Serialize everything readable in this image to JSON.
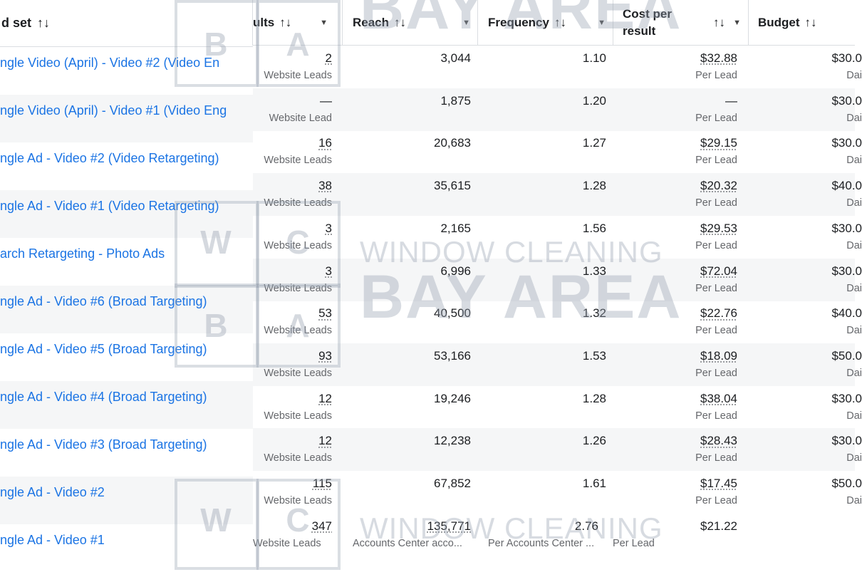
{
  "header": {
    "ad_set_label": "d set",
    "results_label": "ults",
    "reach_label": "Reach",
    "frequency_label": "Frequency",
    "cost_label_line1": "Cost per",
    "cost_label_line2": "result",
    "budget_label": "Budget",
    "sort_glyph": "↑↓",
    "caret_glyph": "▼"
  },
  "rows": [
    {
      "name": "ngle Video (April) - Video #2 (Video En",
      "results": "2",
      "results_sub": "Website Leads",
      "reach": "3,044",
      "frequency": "1.10",
      "cost": "$32.88",
      "cost_sub": "Per Lead",
      "budget": "$30.0",
      "budget_sub": "Dai"
    },
    {
      "name": "ngle Video (April) - Video #1 (Video Eng",
      "results": "—",
      "results_sub": "Website Lead",
      "reach": "1,875",
      "frequency": "1.20",
      "cost": "—",
      "cost_sub": "Per Lead",
      "budget": "$30.0",
      "budget_sub": "Dai"
    },
    {
      "name": "ngle Ad - Video #2 (Video Retargeting)",
      "results": "16",
      "results_sub": "Website Leads",
      "reach": "20,683",
      "frequency": "1.27",
      "cost": "$29.15",
      "cost_sub": "Per Lead",
      "budget": "$30.0",
      "budget_sub": "Dai"
    },
    {
      "name": "ngle Ad - Video #1 (Video Retargeting)",
      "results": "38",
      "results_sub": "Website Leads",
      "reach": "35,615",
      "frequency": "1.28",
      "cost": "$20.32",
      "cost_sub": "Per Lead",
      "budget": "$40.0",
      "budget_sub": "Dai"
    },
    {
      "name": "arch Retargeting - Photo Ads",
      "results": "3",
      "results_sub": "Website Leads",
      "reach": "2,165",
      "frequency": "1.56",
      "cost": "$29.53",
      "cost_sub": "Per Lead",
      "budget": "$30.0",
      "budget_sub": "Dai"
    },
    {
      "name": "ngle Ad - Video #6 (Broad Targeting)",
      "results": "3",
      "results_sub": "Website Leads",
      "reach": "6,996",
      "frequency": "1.33",
      "cost": "$72.04",
      "cost_sub": "Per Lead",
      "budget": "$30.0",
      "budget_sub": "Dai"
    },
    {
      "name": "ngle Ad - Video #5 (Broad Targeting)",
      "results": "53",
      "results_sub": "Website Leads",
      "reach": "40,500",
      "frequency": "1.32",
      "cost": "$22.76",
      "cost_sub": "Per Lead",
      "budget": "$40.0",
      "budget_sub": "Dai"
    },
    {
      "name": "ngle Ad - Video #4 (Broad Targeting)",
      "results": "93",
      "results_sub": "Website Leads",
      "reach": "53,166",
      "frequency": "1.53",
      "cost": "$18.09",
      "cost_sub": "Per Lead",
      "budget": "$50.0",
      "budget_sub": "Dai"
    },
    {
      "name": "ngle Ad - Video #3 (Broad Targeting)",
      "results": "12",
      "results_sub": "Website Leads",
      "reach": "19,246",
      "frequency": "1.28",
      "cost": "$38.04",
      "cost_sub": "Per Lead",
      "budget": "$30.0",
      "budget_sub": "Dai"
    },
    {
      "name": "ngle Ad - Video #2",
      "results": "12",
      "results_sub": "Website Leads",
      "reach": "12,238",
      "frequency": "1.26",
      "cost": "$28.43",
      "cost_sub": "Per Lead",
      "budget": "$30.0",
      "budget_sub": "Dai"
    },
    {
      "name": "ngle Ad - Video #1",
      "results": "115",
      "results_sub": "Website Leads",
      "reach": "67,852",
      "frequency": "1.61",
      "cost": "$17.45",
      "cost_sub": "Per Lead",
      "budget": "$50.0",
      "budget_sub": "Dai"
    }
  ],
  "totals": {
    "results": "347",
    "results_sub": "Website Leads",
    "reach": "135,771",
    "reach_sub": "Accounts Center acco...",
    "frequency": "2.76",
    "frequency_sub": "Per Accounts Center ...",
    "cost": "$21.22",
    "cost_sub": "Per Lead"
  },
  "watermark": {
    "small": "WINDOW CLEANING",
    "big": "BAY AREA",
    "letters": [
      "B",
      "A",
      "W",
      "C"
    ]
  },
  "colors": {
    "link": "#1b74e4",
    "alt_row": "#f5f6f7",
    "border": "#dadde1"
  }
}
